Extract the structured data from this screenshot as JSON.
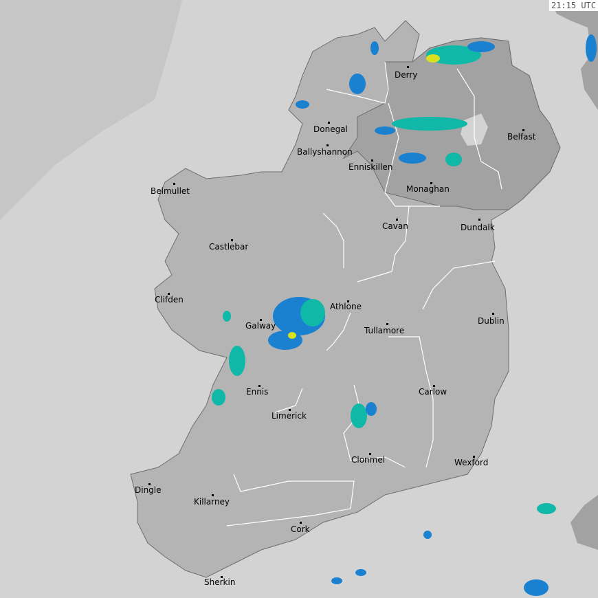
{
  "timestamp": "21:15 UTC",
  "colors": {
    "sea": "#d3d3d3",
    "outer_sea": "#c6c6c6",
    "land": "#b4b4b4",
    "northern_ireland": "#a2a2a2",
    "border": "#ffffff",
    "coast": "#6e6e6e",
    "rain_light": "#1a80d0",
    "rain_medium": "#10b8a8",
    "rain_heavy": "#d8e020"
  },
  "cities": [
    "Derry",
    "Donegal",
    "Ballyshannon",
    "Enniskillen",
    "Belfast",
    "Monaghan",
    "Belmullet",
    "Cavan",
    "Dundalk",
    "Castlebar",
    "Clifden",
    "Athlone",
    "Galway",
    "Dublin",
    "Tullamore",
    "Ennis",
    "Carlow",
    "Limerick",
    "Clonmel",
    "Wexford",
    "Dingle",
    "Killarney",
    "Cork",
    "Sherkin"
  ]
}
